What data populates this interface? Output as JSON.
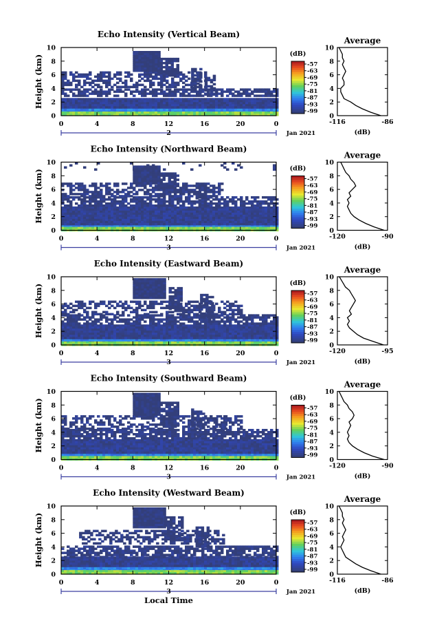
{
  "chart_data": [
    {
      "type": "heatmap",
      "title": "Echo Intensity (Vertical Beam)",
      "ylabel": "Height (km)",
      "x_ticks": [
        "0",
        "4",
        "8",
        "12",
        "16",
        "20",
        "0"
      ],
      "y_ticks": [
        "0",
        "2",
        "4",
        "6",
        "8",
        "10"
      ],
      "xlim": [
        0,
        24
      ],
      "ylim": [
        0,
        10
      ],
      "day_marker": "2",
      "date_label": "Jan 2021",
      "colorbar": {
        "label": "(dB)",
        "ticks": [
          "-57",
          "-63",
          "-69",
          "-75",
          "-81",
          "-87",
          "-93",
          "-99"
        ]
      },
      "profile": {
        "title": "Average",
        "xlabel": "(dB)",
        "x_ticks": [
          "-116",
          "-86"
        ],
        "xlim": [
          -116,
          -86
        ],
        "y_ticks": [
          "0",
          "2",
          "4",
          "6",
          "8",
          "10"
        ],
        "heights": [
          0,
          0.5,
          1,
          1.5,
          2,
          2.5,
          3,
          3.5,
          4,
          4.5,
          5,
          5.5,
          6,
          6.5,
          7,
          7.5,
          8,
          8.5,
          9,
          9.5,
          10
        ],
        "values": [
          -90,
          -96,
          -101,
          -105,
          -108,
          -112,
          -113,
          -114,
          -114,
          -112,
          -112,
          -113,
          -112,
          -111,
          -112,
          -113,
          -112,
          -113,
          -113,
          -114,
          -115
        ]
      },
      "echo_regions": [
        {
          "x0": 0,
          "x1": 24,
          "y0": 0.3,
          "y1": 1.3,
          "level": 0.72
        },
        {
          "x0": 0,
          "x1": 24,
          "y0": 0.1,
          "y1": 0.6,
          "level": 0.45
        },
        {
          "x0": 0,
          "x1": 24,
          "y0": 1.2,
          "y1": 2.6,
          "level": 0.95
        },
        {
          "x0": 0,
          "x1": 24,
          "y0": 2.8,
          "y1": 4.0,
          "level": 0.98,
          "density": 0.7
        },
        {
          "x0": 0,
          "x1": 16,
          "y0": 4.3,
          "y1": 6.5,
          "level": 0.98,
          "density": 0.55
        },
        {
          "x0": 8,
          "x1": 11,
          "y0": 6.5,
          "y1": 9.5,
          "level": 1.0
        },
        {
          "x0": 11,
          "x1": 13,
          "y0": 6.0,
          "y1": 8.5,
          "level": 1.0,
          "density": 0.8
        },
        {
          "x0": 14.5,
          "x1": 15.5,
          "y0": 3.5,
          "y1": 7.0,
          "level": 1.0,
          "density": 0.7
        },
        {
          "x0": 16,
          "x1": 17,
          "y0": 3.0,
          "y1": 6.0,
          "level": 1.0,
          "density": 0.7
        }
      ]
    },
    {
      "type": "heatmap",
      "title": "Echo Intensity (Northward Beam)",
      "ylabel": "Height (km)",
      "x_ticks": [
        "0",
        "4",
        "8",
        "12",
        "16",
        "20",
        "0"
      ],
      "y_ticks": [
        "0",
        "2",
        "4",
        "6",
        "8",
        "10"
      ],
      "xlim": [
        0,
        24
      ],
      "ylim": [
        0,
        10
      ],
      "day_marker": "3",
      "date_label": "Jan 2021",
      "colorbar": {
        "label": "(dB)",
        "ticks": [
          "-57",
          "-63",
          "-69",
          "-75",
          "-81",
          "-87",
          "-93",
          "-99"
        ]
      },
      "profile": {
        "title": "Average",
        "xlabel": "(dB)",
        "x_ticks": [
          "-120",
          "-90"
        ],
        "xlim": [
          -120,
          -90
        ],
        "y_ticks": [
          "0",
          "2",
          "4",
          "6",
          "8",
          "10"
        ],
        "heights": [
          0,
          0.5,
          1,
          1.5,
          2,
          2.5,
          3,
          3.5,
          4,
          4.5,
          5,
          5.5,
          6,
          6.5,
          7,
          7.5,
          8,
          8.5,
          9,
          9.5,
          10
        ],
        "values": [
          -92,
          -98,
          -103,
          -107,
          -110,
          -112,
          -113,
          -114,
          -113,
          -114,
          -112,
          -113,
          -111,
          -109,
          -110,
          -112,
          -113,
          -115,
          -116,
          -117,
          -118
        ]
      },
      "echo_regions": [
        {
          "x0": 0,
          "x1": 24,
          "y0": 0.3,
          "y1": 1.2,
          "level": 0.72
        },
        {
          "x0": 0,
          "x1": 24,
          "y0": 0.1,
          "y1": 0.5,
          "level": 0.45
        },
        {
          "x0": 0,
          "x1": 24,
          "y0": 1.0,
          "y1": 3.5,
          "level": 0.95
        },
        {
          "x0": 0,
          "x1": 24,
          "y0": 3.5,
          "y1": 5.0,
          "level": 0.98,
          "density": 0.75
        },
        {
          "x0": 0,
          "x1": 18,
          "y0": 5.0,
          "y1": 7.0,
          "level": 0.98,
          "density": 0.6
        },
        {
          "x0": 8,
          "x1": 11,
          "y0": 7.0,
          "y1": 9.5,
          "level": 1.0
        },
        {
          "x0": 11,
          "x1": 13,
          "y0": 5.5,
          "y1": 8.5,
          "level": 1.0,
          "density": 0.8
        },
        {
          "x0": 15,
          "x1": 16,
          "y0": 3.5,
          "y1": 7.0,
          "level": 1.0,
          "density": 0.7
        },
        {
          "x0": 0,
          "x1": 24,
          "y0": 9.0,
          "y1": 10.0,
          "level": 1.0,
          "density": 0.15
        }
      ]
    },
    {
      "type": "heatmap",
      "title": "Echo Intensity (Eastward Beam)",
      "ylabel": "Height (km)",
      "x_ticks": [
        "0",
        "4",
        "8",
        "12",
        "16",
        "20",
        "0"
      ],
      "y_ticks": [
        "0",
        "2",
        "4",
        "6",
        "8",
        "10"
      ],
      "xlim": [
        0,
        24
      ],
      "ylim": [
        0,
        10
      ],
      "day_marker": "3",
      "date_label": "Jan 2021",
      "colorbar": {
        "label": "(dB)",
        "ticks": [
          "-57",
          "-63",
          "-69",
          "-75",
          "-81",
          "-87",
          "-93",
          "-99"
        ]
      },
      "profile": {
        "title": "Average",
        "xlabel": "(dB)",
        "x_ticks": [
          "-120",
          "-95"
        ],
        "xlim": [
          -120,
          -95
        ],
        "y_ticks": [
          "0",
          "2",
          "4",
          "6",
          "8",
          "10"
        ],
        "heights": [
          0,
          0.5,
          1,
          1.5,
          2,
          2.5,
          3,
          3.5,
          4,
          4.5,
          5,
          5.5,
          6,
          6.5,
          7,
          7.5,
          8,
          8.5,
          9,
          9.5,
          10
        ],
        "values": [
          -97,
          -102,
          -107,
          -110,
          -112,
          -114,
          -115,
          -114,
          -115,
          -113,
          -114,
          -113,
          -112,
          -111,
          -112,
          -113,
          -114,
          -116,
          -117,
          -118,
          -119
        ]
      },
      "echo_regions": [
        {
          "x0": 0,
          "x1": 24,
          "y0": 0.3,
          "y1": 1.2,
          "level": 0.72
        },
        {
          "x0": 0,
          "x1": 24,
          "y0": 0.1,
          "y1": 0.5,
          "level": 0.45
        },
        {
          "x0": 0,
          "x1": 24,
          "y0": 1.0,
          "y1": 3.0,
          "level": 0.95
        },
        {
          "x0": 0,
          "x1": 24,
          "y0": 3.0,
          "y1": 4.5,
          "level": 0.98,
          "density": 0.75
        },
        {
          "x0": 0,
          "x1": 20,
          "y0": 4.5,
          "y1": 6.5,
          "level": 0.98,
          "density": 0.5
        },
        {
          "x0": 8,
          "x1": 11.5,
          "y0": 7.0,
          "y1": 9.8,
          "level": 1.0
        },
        {
          "x0": 12,
          "x1": 13.5,
          "y0": 5.0,
          "y1": 8.5,
          "level": 1.0,
          "density": 0.8
        },
        {
          "x0": 15.5,
          "x1": 17,
          "y0": 3.5,
          "y1": 7.5,
          "level": 1.0,
          "density": 0.7
        }
      ]
    },
    {
      "type": "heatmap",
      "title": "Echo Intensity (Southward Beam)",
      "ylabel": "Height (km)",
      "x_ticks": [
        "0",
        "4",
        "8",
        "12",
        "16",
        "20",
        "0"
      ],
      "y_ticks": [
        "0",
        "2",
        "4",
        "6",
        "8",
        "10"
      ],
      "xlim": [
        0,
        24
      ],
      "ylim": [
        0,
        10
      ],
      "day_marker": "3",
      "date_label": "Jan 2021",
      "colorbar": {
        "label": "(dB)",
        "ticks": [
          "-57",
          "-63",
          "-69",
          "-75",
          "-81",
          "-87",
          "-93",
          "-99"
        ]
      },
      "profile": {
        "title": "Average",
        "xlabel": "(dB)",
        "x_ticks": [
          "-120",
          "-90"
        ],
        "xlim": [
          -120,
          -90
        ],
        "y_ticks": [
          "0",
          "2",
          "4",
          "6",
          "8",
          "10"
        ],
        "heights": [
          0,
          0.5,
          1,
          1.5,
          2,
          2.5,
          3,
          3.5,
          4,
          4.5,
          5,
          5.5,
          6,
          6.5,
          7,
          7.5,
          8,
          8.5,
          9,
          9.5,
          10
        ],
        "values": [
          -92,
          -99,
          -104,
          -108,
          -111,
          -113,
          -114,
          -113,
          -114,
          -113,
          -112,
          -113,
          -111,
          -110,
          -111,
          -113,
          -114,
          -116,
          -117,
          -118,
          -119
        ]
      },
      "echo_regions": [
        {
          "x0": 0,
          "x1": 24,
          "y0": 0.3,
          "y1": 1.2,
          "level": 0.72
        },
        {
          "x0": 0,
          "x1": 24,
          "y0": 0.1,
          "y1": 0.5,
          "level": 0.45
        },
        {
          "x0": 0,
          "x1": 24,
          "y0": 1.0,
          "y1": 3.0,
          "level": 0.95
        },
        {
          "x0": 0,
          "x1": 24,
          "y0": 3.0,
          "y1": 4.5,
          "level": 0.98,
          "density": 0.75
        },
        {
          "x0": 0,
          "x1": 20,
          "y0": 4.5,
          "y1": 6.5,
          "level": 0.98,
          "density": 0.55
        },
        {
          "x0": 8,
          "x1": 11,
          "y0": 6.5,
          "y1": 9.8,
          "level": 1.0
        },
        {
          "x0": 11,
          "x1": 13,
          "y0": 5.0,
          "y1": 8.5,
          "level": 1.0,
          "density": 0.8
        },
        {
          "x0": 14.5,
          "x1": 16,
          "y0": 3.5,
          "y1": 7.5,
          "level": 1.0,
          "density": 0.7
        },
        {
          "x0": 17,
          "x1": 18.5,
          "y0": 4.0,
          "y1": 6.5,
          "level": 1.0,
          "density": 0.6
        }
      ]
    },
    {
      "type": "heatmap",
      "title": "Echo Intensity (Westward Beam)",
      "ylabel": "Height (km)",
      "x_ticks": [
        "0",
        "4",
        "8",
        "12",
        "16",
        "20",
        "0"
      ],
      "y_ticks": [
        "0",
        "2",
        "4",
        "6",
        "8",
        "10"
      ],
      "xlim": [
        0,
        24
      ],
      "ylim": [
        0,
        10
      ],
      "day_marker": "3",
      "date_label": "Jan 2021",
      "xlabel": "Local Time",
      "colorbar": {
        "label": "(dB)",
        "ticks": [
          "-57",
          "-63",
          "-69",
          "-75",
          "-81",
          "-87",
          "-93",
          "-99"
        ]
      },
      "profile": {
        "title": "Average",
        "xlabel": "(dB)",
        "x_ticks": [
          "-116",
          "-86"
        ],
        "xlim": [
          -116,
          -86
        ],
        "y_ticks": [
          "0",
          "2",
          "4",
          "6",
          "8",
          "10"
        ],
        "heights": [
          0,
          0.5,
          1,
          1.5,
          2,
          2.5,
          3,
          3.5,
          4,
          4.5,
          5,
          5.5,
          6,
          6.5,
          7,
          7.5,
          8,
          8.5,
          9,
          9.5,
          10
        ],
        "values": [
          -90,
          -96,
          -101,
          -105,
          -108,
          -111,
          -112,
          -113,
          -114,
          -113,
          -112,
          -113,
          -112,
          -111,
          -112,
          -113,
          -112,
          -113,
          -113,
          -114,
          -115
        ]
      },
      "echo_regions": [
        {
          "x0": 0,
          "x1": 24,
          "y0": 0.3,
          "y1": 1.3,
          "level": 0.72
        },
        {
          "x0": 0,
          "x1": 24,
          "y0": 0.1,
          "y1": 0.6,
          "level": 0.45
        },
        {
          "x0": 0,
          "x1": 24,
          "y0": 1.2,
          "y1": 2.6,
          "level": 0.95
        },
        {
          "x0": 0,
          "x1": 24,
          "y0": 2.6,
          "y1": 4.2,
          "level": 0.98,
          "density": 0.7
        },
        {
          "x0": 2,
          "x1": 18,
          "y0": 4.5,
          "y1": 6.5,
          "level": 0.98,
          "density": 0.5
        },
        {
          "x0": 8,
          "x1": 11.5,
          "y0": 7.0,
          "y1": 9.8,
          "level": 1.0
        },
        {
          "x0": 11.5,
          "x1": 13.5,
          "y0": 5.0,
          "y1": 8.5,
          "level": 1.0,
          "density": 0.8
        },
        {
          "x0": 15,
          "x1": 16.5,
          "y0": 4.0,
          "y1": 7.0,
          "level": 1.0,
          "density": 0.7
        }
      ]
    }
  ]
}
